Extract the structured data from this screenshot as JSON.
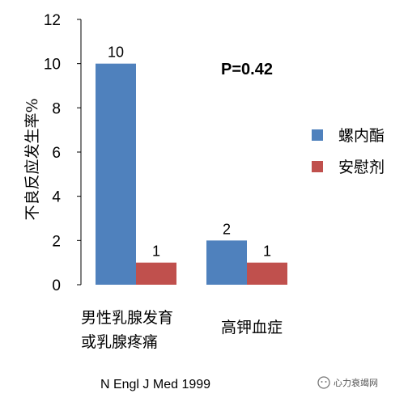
{
  "chart_data": {
    "type": "bar",
    "ylabel": "不良反应发生率%",
    "ylim": [
      0,
      12
    ],
    "yticks": [
      0,
      2,
      4,
      6,
      8,
      10,
      12
    ],
    "categories": [
      [
        "男性乳腺发育",
        "或乳腺疼痛"
      ],
      [
        "高钾血症"
      ]
    ],
    "series": [
      {
        "name": "螺内酯",
        "values": [
          10,
          2
        ],
        "color": "#4f81bd"
      },
      {
        "name": "安慰剂",
        "values": [
          1,
          1
        ],
        "color": "#c0504d"
      }
    ],
    "annotation": "P=0.42",
    "legend_position": "right",
    "grid": false
  },
  "source": "N Engl J Med 1999",
  "watermark": {
    "icon": "wechat-icon",
    "text": "心力衰竭网"
  }
}
